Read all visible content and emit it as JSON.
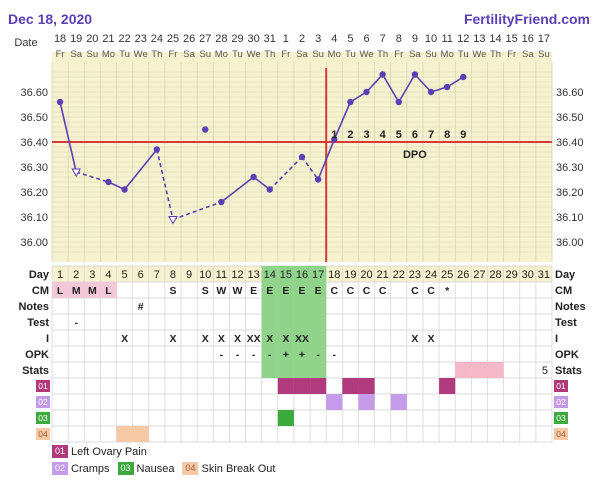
{
  "header": {
    "date": "Dec 18, 2020",
    "brand": "FertilityFriend.com"
  },
  "colors": {
    "panel": "#f6f1cf",
    "grid": "#d9d4b4",
    "line": "#5b3fb5",
    "coverline": "#d83a3a",
    "dpo": "#d83a3a",
    "fertile": "#8fd48a",
    "stats_pink": "#f4b8c8",
    "lab01": "#b03a7c",
    "lab02": "#c59ae8",
    "lab03": "#3daa3d",
    "lab04": "#f5c9a6"
  },
  "chart_data": {
    "type": "line",
    "title": "",
    "ylabel": "",
    "ylim": [
      35.9,
      36.71
    ],
    "yticks": [
      36.6,
      36.5,
      36.4,
      36.3,
      36.2,
      36.1,
      36.0
    ],
    "cover_line": 36.4,
    "ovulation_day": 17,
    "date_row": [
      "18",
      "19",
      "20",
      "21",
      "22",
      "23",
      "24",
      "25",
      "26",
      "27",
      "28",
      "29",
      "30",
      "31",
      "1",
      "2",
      "3",
      "4",
      "5",
      "6",
      "7",
      "8",
      "9",
      "10",
      "11",
      "12",
      "13",
      "14",
      "15",
      "16",
      "17"
    ],
    "weekday_row": [
      "Fr",
      "Sa",
      "Su",
      "Mo",
      "Tu",
      "We",
      "Th",
      "Fr",
      "Sa",
      "Su",
      "Mo",
      "Tu",
      "We",
      "Th",
      "Fr",
      "Sa",
      "Su",
      "Mo",
      "Tu",
      "We",
      "Th",
      "Fr",
      "Sa",
      "Su",
      "Mo",
      "Tu",
      "We",
      "Th",
      "Fr",
      "Sa",
      "Su"
    ],
    "temps": [
      36.56,
      36.28,
      null,
      36.24,
      36.21,
      null,
      36.37,
      36.09,
      null,
      36.45,
      36.16,
      null,
      36.26,
      36.21,
      null,
      36.34,
      36.25,
      36.41,
      36.56,
      36.6,
      36.67,
      36.56,
      36.67,
      36.6,
      36.62,
      36.66,
      null,
      null,
      null,
      null,
      null
    ],
    "discarded_day": 10,
    "open_markers": [
      2,
      8
    ],
    "dashed_segments": [
      [
        2,
        4
      ],
      [
        7,
        8
      ],
      [
        8,
        11
      ],
      [
        14,
        16
      ],
      [
        16,
        17
      ]
    ],
    "dpo_label": "DPO",
    "dpo_numbers": [
      {
        "day": 18,
        "label": "1"
      },
      {
        "day": 19,
        "label": "2"
      },
      {
        "day": 20,
        "label": "3"
      },
      {
        "day": 21,
        "label": "4"
      },
      {
        "day": 22,
        "label": "5"
      },
      {
        "day": 23,
        "label": "6"
      },
      {
        "day": 24,
        "label": "7"
      },
      {
        "day": 25,
        "label": "8"
      },
      {
        "day": 26,
        "label": "9"
      }
    ],
    "rows": [
      {
        "label": "Day",
        "values": [
          "1",
          "2",
          "3",
          "4",
          "5",
          "6",
          "7",
          "8",
          "9",
          "10",
          "11",
          "12",
          "13",
          "14",
          "15",
          "16",
          "17",
          "18",
          "19",
          "20",
          "21",
          "22",
          "23",
          "24",
          "25",
          "26",
          "27",
          "28",
          "29",
          "30",
          "31"
        ]
      },
      {
        "label": "CM",
        "values": [
          "L",
          "M",
          "M",
          "L",
          "",
          "",
          "",
          "S",
          "",
          "S",
          "W",
          "W",
          "E",
          "E",
          "E",
          "E",
          "E",
          "C",
          "C",
          "C",
          "C",
          "",
          "C",
          "C",
          "*",
          "",
          "",
          "",
          "",
          "",
          ""
        ]
      },
      {
        "label": "Notes",
        "values": [
          "",
          "",
          "",
          "",
          "",
          "#",
          "",
          "",
          "",
          "",
          "",
          "",
          "",
          "",
          "",
          "",
          "",
          "",
          "",
          "",
          "",
          "",
          "",
          "",
          "",
          "",
          "",
          "",
          "",
          "",
          ""
        ]
      },
      {
        "label": "Test",
        "values": [
          "",
          "-",
          "",
          "",
          "",
          "",
          "",
          "",
          "",
          "",
          "",
          "",
          "",
          "",
          "",
          "",
          "",
          "",
          "",
          "",
          "",
          "",
          "",
          "",
          "",
          "",
          "",
          "",
          "",
          "",
          ""
        ]
      },
      {
        "label": "I",
        "values": [
          "",
          "",
          "",
          "",
          "X",
          "",
          "",
          "X",
          "",
          "X",
          "X",
          "X",
          "XX",
          "X",
          "X",
          "XX",
          "",
          "",
          "",
          "",
          "",
          "",
          "X",
          "X",
          "",
          "",
          "",
          "",
          "",
          "",
          ""
        ]
      },
      {
        "label": "OPK",
        "values": [
          "",
          "",
          "",
          "",
          "",
          "",
          "",
          "",
          "",
          "",
          "-",
          "-",
          "-",
          "-",
          "+",
          "+",
          "-",
          "-",
          "",
          "",
          "",
          "",
          "",
          "",
          "",
          "",
          "",
          "",
          "",
          "",
          ""
        ]
      },
      {
        "label": "Stats",
        "values": [
          "",
          "",
          "",
          "",
          "",
          "",
          "",
          "",
          "",
          "",
          "",
          "",
          "",
          "",
          "",
          "",
          "",
          "",
          "",
          "",
          "",
          "",
          "",
          "",
          "",
          "",
          "",
          "",
          "",
          "",
          ""
        ],
        "right_value": "5"
      },
      {
        "label": "01",
        "values": []
      },
      {
        "label": "02",
        "values": []
      },
      {
        "label": "03",
        "values": []
      },
      {
        "label": "04",
        "values": []
      }
    ]
  },
  "legend": [
    {
      "code": "01",
      "text": "Left Ovary Pain"
    },
    {
      "code": "02",
      "text": "Cramps"
    },
    {
      "code": "03",
      "text": "Nausea"
    },
    {
      "code": "04",
      "text": "Skin Break Out"
    }
  ]
}
